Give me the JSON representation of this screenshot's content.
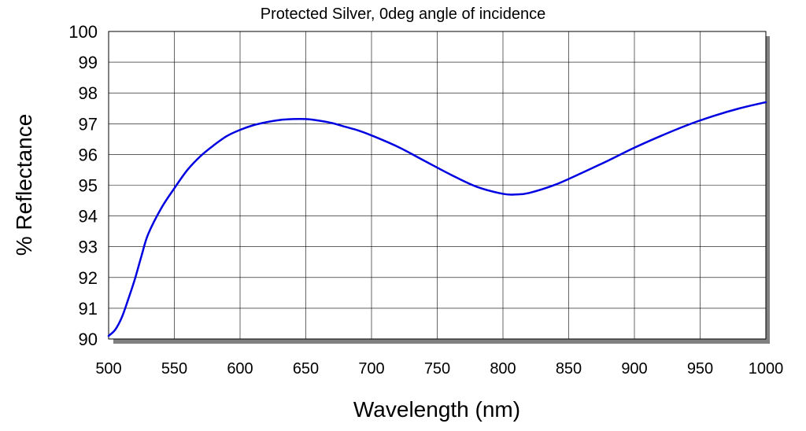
{
  "chart_data": {
    "type": "line",
    "title": "Protected Silver, 0deg angle of incidence",
    "xlabel": "Wavelength (nm)",
    "ylabel": "% Reflectance",
    "xlim": [
      500,
      1000
    ],
    "ylim": [
      90,
      100
    ],
    "xticks": [
      "500",
      "550",
      "600",
      "650",
      "700",
      "750",
      "800",
      "850",
      "900",
      "950",
      "1000"
    ],
    "yticks": [
      "90",
      "91",
      "92",
      "93",
      "94",
      "95",
      "96",
      "97",
      "98",
      "99",
      "100"
    ],
    "grid": true,
    "legend": "none",
    "series": [
      {
        "color": "#0000e0",
        "x": [
          500,
          505,
          510,
          515,
          520,
          525,
          530,
          540,
          550,
          560,
          570,
          580,
          590,
          600,
          610,
          620,
          630,
          640,
          650,
          660,
          670,
          680,
          690,
          700,
          720,
          740,
          760,
          780,
          800,
          810,
          820,
          840,
          860,
          880,
          900,
          920,
          940,
          960,
          980,
          1000
        ],
        "y": [
          90.1,
          90.3,
          90.7,
          91.3,
          91.95,
          92.7,
          93.4,
          94.25,
          94.9,
          95.5,
          95.95,
          96.3,
          96.6,
          96.8,
          96.95,
          97.05,
          97.12,
          97.15,
          97.15,
          97.1,
          97.02,
          96.9,
          96.78,
          96.62,
          96.25,
          95.8,
          95.35,
          94.95,
          94.72,
          94.7,
          94.75,
          95.02,
          95.4,
          95.8,
          96.22,
          96.6,
          96.95,
          97.25,
          97.5,
          97.7
        ]
      }
    ]
  }
}
